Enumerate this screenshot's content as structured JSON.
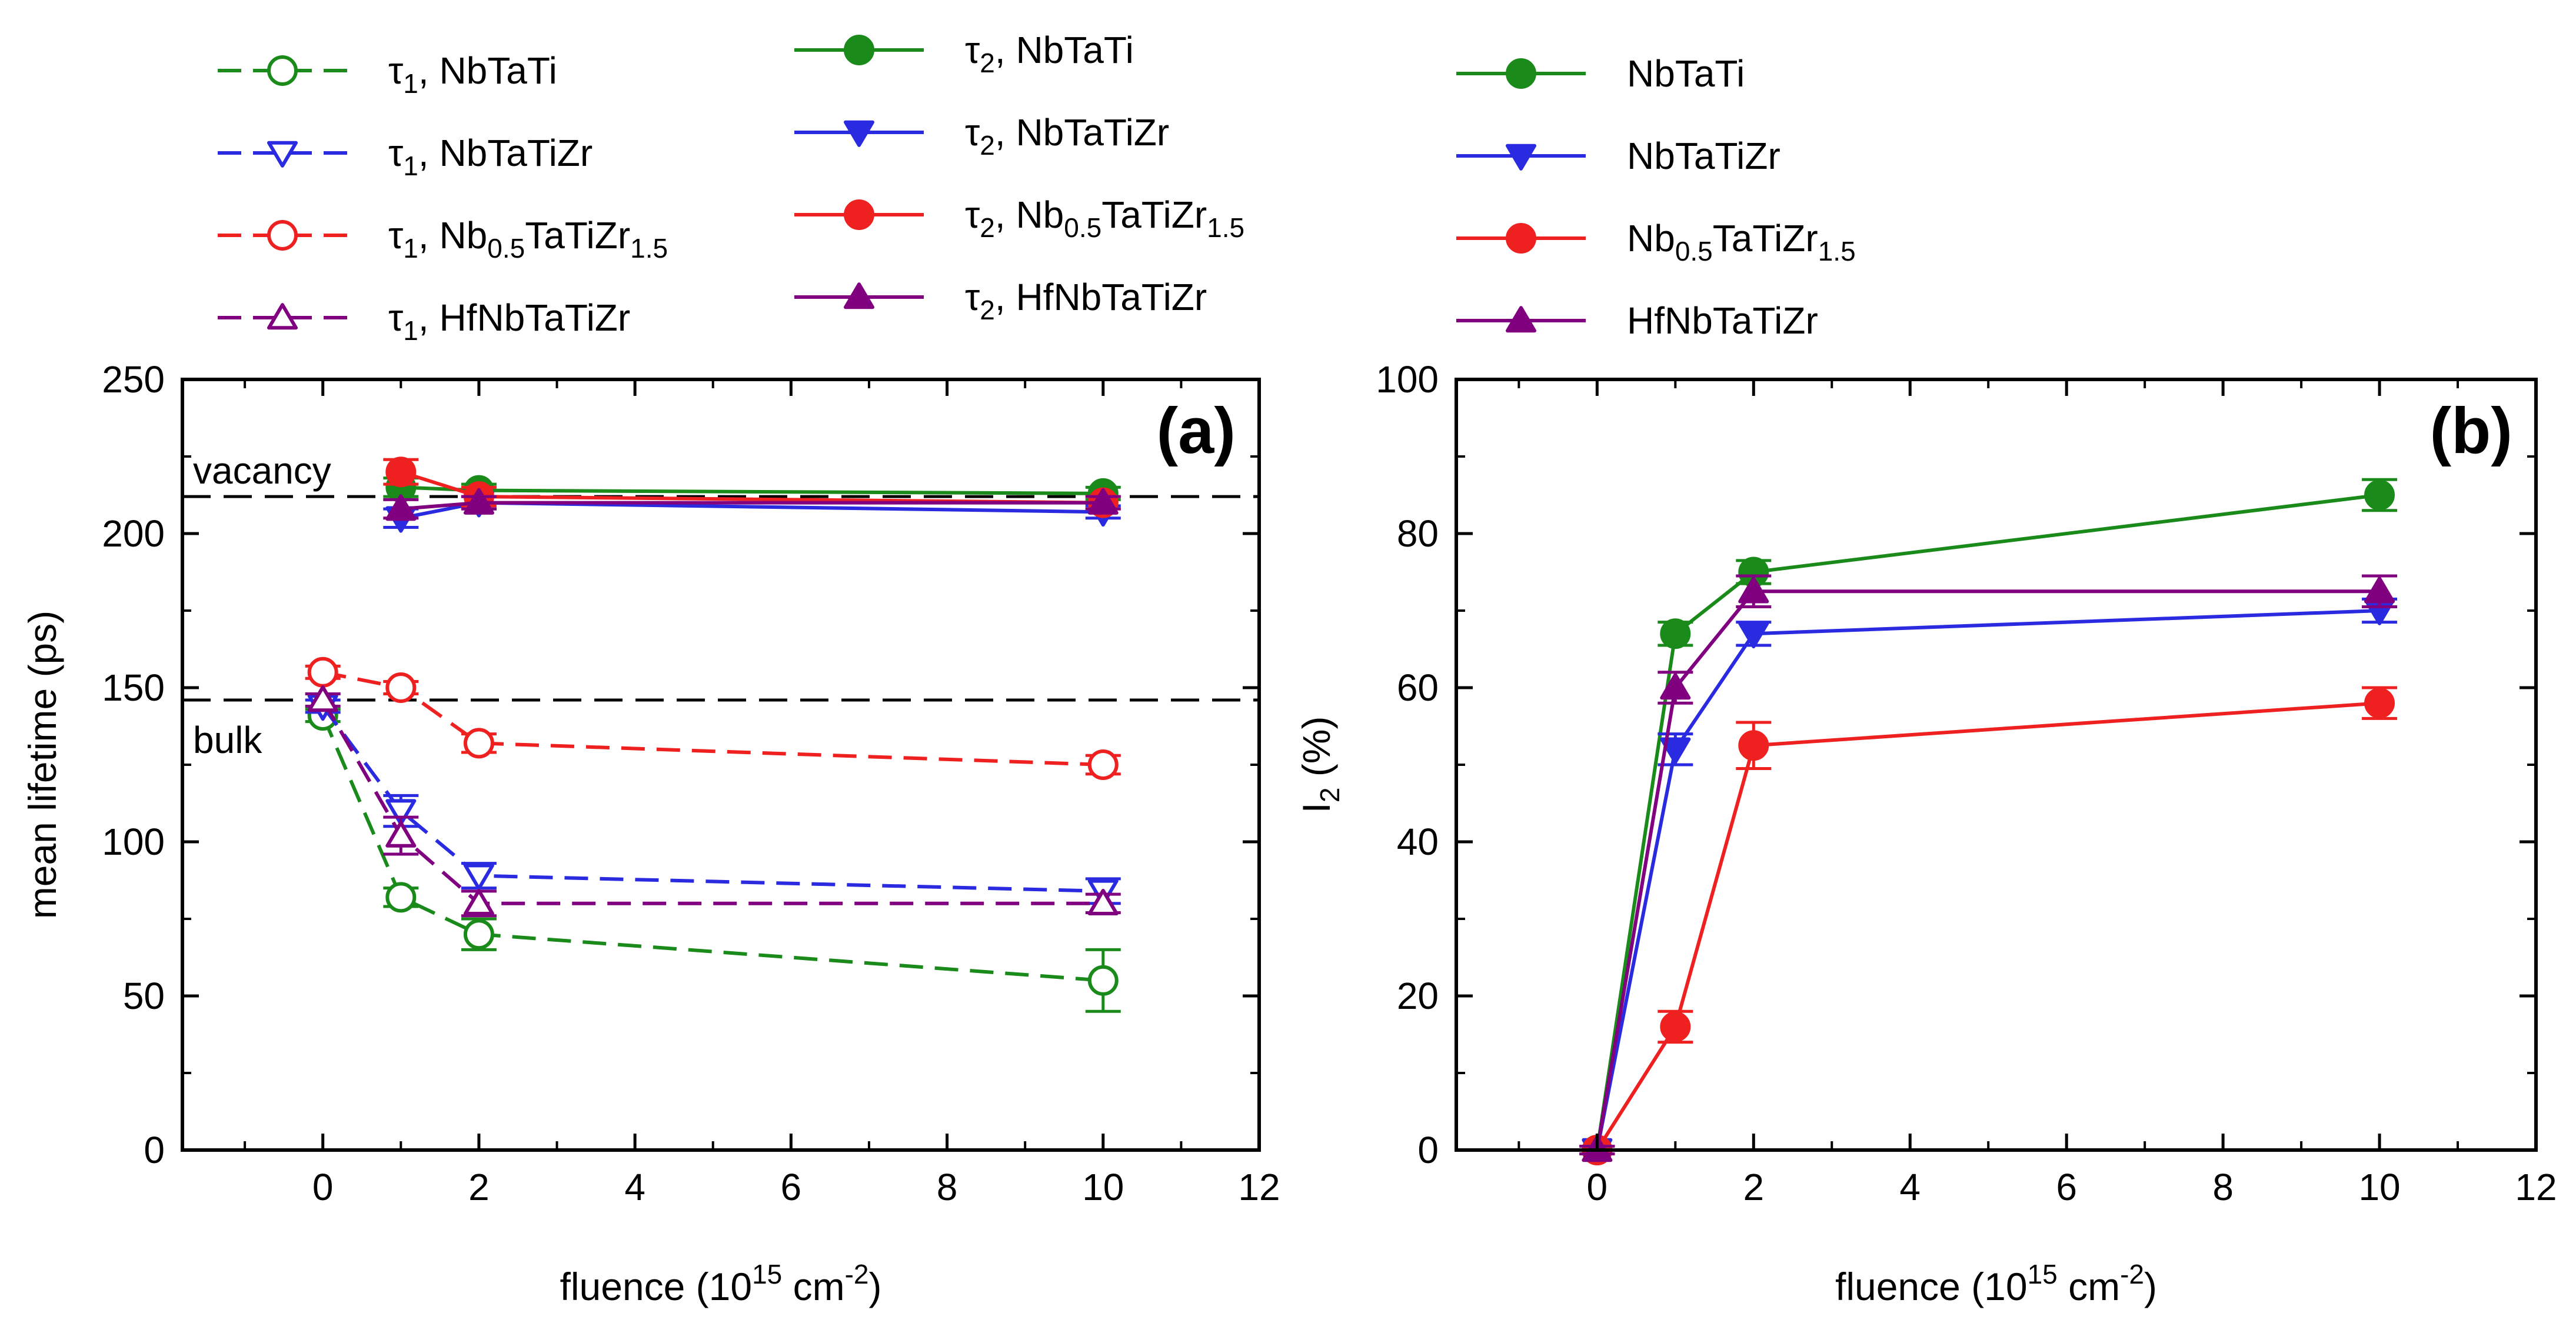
{
  "chart_data": [
    {
      "type": "line",
      "panel_label": "(a)",
      "xlabel": {
        "text": "fluence (10",
        "sup": "15",
        "mid": " cm",
        "sup2": "-2",
        "end": ")"
      },
      "ylabel": "mean lifetime (ps)",
      "xlim": [
        -1.8,
        12
      ],
      "ylim": [
        0,
        250
      ],
      "xticks": [
        0,
        2,
        4,
        6,
        8,
        10,
        12
      ],
      "yticks": [
        0,
        50,
        100,
        150,
        200,
        250
      ],
      "reference_lines": [
        {
          "y": 212,
          "label": "vacancy"
        },
        {
          "y": 146,
          "label": "bulk"
        }
      ],
      "series": [
        {
          "name": "τ1, NbTaTi",
          "color": "#1a8a1a",
          "marker": "circle",
          "filled": false,
          "dashed": true,
          "x": [
            0,
            1,
            2,
            10
          ],
          "y": [
            141,
            82,
            70,
            55
          ],
          "err": [
            2,
            3,
            5,
            10
          ]
        },
        {
          "name": "τ1, NbTaTiZr",
          "color": "#2a2ae0",
          "marker": "tri-down",
          "filled": false,
          "dashed": true,
          "x": [
            0,
            1,
            2,
            10
          ],
          "y": [
            144,
            110,
            89,
            84
          ],
          "err": [
            2,
            5,
            4,
            4
          ]
        },
        {
          "name": "τ1, Nb0.5TaTiZr1.5",
          "color": "#ee2020",
          "marker": "circle",
          "filled": false,
          "dashed": true,
          "x": [
            0,
            1,
            2,
            10
          ],
          "y": [
            155,
            150,
            132,
            125
          ],
          "err": [
            2,
            2,
            3,
            3
          ]
        },
        {
          "name": "τ1, HfNbTaTiZr",
          "color": "#800080",
          "marker": "tri-up",
          "filled": false,
          "dashed": true,
          "x": [
            0,
            1,
            2,
            10
          ],
          "y": [
            146,
            102,
            80,
            80
          ],
          "err": [
            2,
            6,
            4,
            3
          ]
        },
        {
          "name": "τ2, NbTaTi",
          "color": "#1a8a1a",
          "marker": "circle",
          "filled": true,
          "dashed": false,
          "x": [
            1,
            2,
            10
          ],
          "y": [
            215,
            214,
            213
          ],
          "err": [
            3,
            2,
            2
          ]
        },
        {
          "name": "τ2, NbTaTiZr",
          "color": "#2a2ae0",
          "marker": "tri-down",
          "filled": true,
          "dashed": false,
          "x": [
            1,
            2,
            10
          ],
          "y": [
            205,
            210,
            207
          ],
          "err": [
            3,
            2,
            2
          ]
        },
        {
          "name": "τ2, Nb0.5TaTiZr1.5",
          "color": "#ee2020",
          "marker": "circle",
          "filled": true,
          "dashed": false,
          "x": [
            1,
            2,
            10
          ],
          "y": [
            220,
            212,
            210
          ],
          "err": [
            4,
            3,
            2
          ]
        },
        {
          "name": "τ2, HfNbTaTiZr",
          "color": "#800080",
          "marker": "tri-up",
          "filled": true,
          "dashed": false,
          "x": [
            1,
            2,
            10
          ],
          "y": [
            208,
            210,
            210
          ],
          "err": [
            3,
            2,
            2
          ]
        }
      ]
    },
    {
      "type": "line",
      "panel_label": "(b)",
      "xlabel": {
        "text": "fluence (10",
        "sup": "15",
        "mid": " cm",
        "sup2": "-2",
        "end": ")"
      },
      "ylabel": {
        "text": "I",
        "sub": "2",
        "end": " (%)"
      },
      "xlim": [
        -1.8,
        12
      ],
      "ylim": [
        0,
        100
      ],
      "xticks": [
        0,
        2,
        4,
        6,
        8,
        10,
        12
      ],
      "yticks": [
        0,
        20,
        40,
        60,
        80,
        100
      ],
      "series": [
        {
          "name": "NbTaTi",
          "color": "#1a8a1a",
          "marker": "circle",
          "filled": true,
          "x": [
            0,
            1,
            2,
            10
          ],
          "y": [
            0,
            67,
            75,
            85
          ],
          "err": [
            0.5,
            1.5,
            1.5,
            2
          ]
        },
        {
          "name": "NbTaTiZr",
          "color": "#2a2ae0",
          "marker": "tri-down",
          "filled": true,
          "x": [
            0,
            1,
            2,
            10
          ],
          "y": [
            0,
            52,
            67,
            70
          ],
          "err": [
            0.5,
            2,
            1.5,
            1.5
          ]
        },
        {
          "name": "Nb0.5TaTiZr1.5",
          "color": "#ee2020",
          "marker": "circle",
          "filled": true,
          "x": [
            0,
            1,
            2,
            10
          ],
          "y": [
            0,
            16,
            52.5,
            58
          ],
          "err": [
            0.5,
            2,
            3,
            2
          ]
        },
        {
          "name": "HfNbTaTiZr",
          "color": "#800080",
          "marker": "tri-up",
          "filled": true,
          "x": [
            0,
            1,
            2,
            10
          ],
          "y": [
            0,
            60,
            72.5,
            72.5
          ],
          "err": [
            0.5,
            2,
            2,
            2
          ]
        }
      ]
    }
  ],
  "legend": {
    "col1": [
      {
        "prefix": "τ",
        "psub": "1",
        "parts": [
          {
            "t": ", NbTaTi"
          }
        ],
        "series": 0
      },
      {
        "prefix": "τ",
        "psub": "1",
        "parts": [
          {
            "t": ", NbTaTiZr"
          }
        ],
        "series": 1
      },
      {
        "prefix": "τ",
        "psub": "1",
        "parts": [
          {
            "t": ", Nb"
          },
          {
            "s": "0.5"
          },
          {
            "t": "TaTiZr"
          },
          {
            "s": "1.5"
          }
        ],
        "series": 2
      },
      {
        "prefix": "τ",
        "psub": "1",
        "parts": [
          {
            "t": ", HfNbTaTiZr"
          }
        ],
        "series": 3
      }
    ],
    "col2": [
      {
        "prefix": "τ",
        "psub": "2",
        "parts": [
          {
            "t": ", NbTaTi"
          }
        ],
        "series": 4
      },
      {
        "prefix": "τ",
        "psub": "2",
        "parts": [
          {
            "t": ", NbTaTiZr"
          }
        ],
        "series": 5
      },
      {
        "prefix": "τ",
        "psub": "2",
        "parts": [
          {
            "t": ", Nb"
          },
          {
            "s": "0.5"
          },
          {
            "t": "TaTiZr"
          },
          {
            "s": "1.5"
          }
        ],
        "series": 6
      },
      {
        "prefix": "τ",
        "psub": "2",
        "parts": [
          {
            "t": ", HfNbTaTiZr"
          }
        ],
        "series": 7
      }
    ],
    "col3": [
      {
        "prefix": "",
        "psub": "",
        "parts": [
          {
            "t": "NbTaTi"
          }
        ],
        "series": 4
      },
      {
        "prefix": "",
        "psub": "",
        "parts": [
          {
            "t": "NbTaTiZr"
          }
        ],
        "series": 5
      },
      {
        "prefix": "",
        "psub": "",
        "parts": [
          {
            "t": "Nb"
          },
          {
            "s": "0.5"
          },
          {
            "t": "TaTiZr"
          },
          {
            "s": "1.5"
          }
        ],
        "series": 6
      },
      {
        "prefix": "",
        "psub": "",
        "parts": [
          {
            "t": "HfNbTaTiZr"
          }
        ],
        "series": 7
      }
    ]
  }
}
